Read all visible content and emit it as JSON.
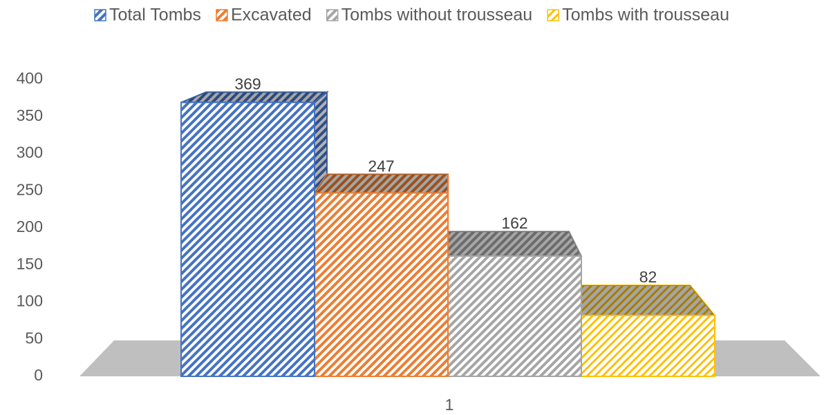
{
  "chart_data": {
    "type": "bar3d",
    "categories": [
      "1"
    ],
    "series": [
      {
        "name": "Total Tombs",
        "color": "#4472c4",
        "values": [
          369
        ]
      },
      {
        "name": "Excavated",
        "color": "#ed7d31",
        "values": [
          247
        ]
      },
      {
        "name": "Tombs without trousseau",
        "color": "#a5a5a5",
        "values": [
          162
        ]
      },
      {
        "name": "Tombs with trousseau",
        "color": "#ffc000",
        "values": [
          82
        ]
      }
    ],
    "ylim": [
      0,
      400
    ],
    "yticks": [
      0,
      50,
      100,
      150,
      200,
      250,
      300,
      350,
      400
    ],
    "grid": false,
    "legend": "top"
  }
}
